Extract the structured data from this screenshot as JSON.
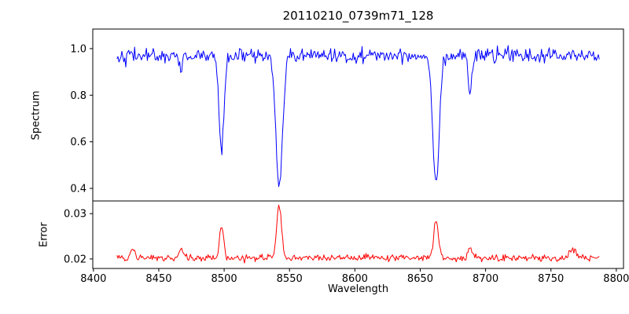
{
  "chart_data": {
    "type": "line",
    "title": "20110210_0739m71_128",
    "xlabel": "Wavelength",
    "xlim": [
      8399.5,
      8805.5
    ],
    "xticks": [
      8400,
      8450,
      8500,
      8550,
      8600,
      8650,
      8700,
      8750,
      8800
    ],
    "xtick_labels": [
      "8400",
      "8450",
      "8500",
      "8550",
      "8600",
      "8650",
      "8700",
      "8750",
      "8800"
    ],
    "x_start": 8418,
    "x_end": 8787,
    "x_step": 0.75,
    "panels": [
      {
        "name": "spectrum",
        "ylabel": "Spectrum",
        "color": "#0000ff",
        "ylim": [
          0.346,
          1.084
        ],
        "yticks": [
          0.4,
          0.6,
          0.8,
          1.0
        ],
        "ytick_labels": [
          "0.4",
          "0.6",
          "0.8",
          "1.0"
        ],
        "continuum": 0.97,
        "noise_sigma": 0.015,
        "absorption_lines": [
          {
            "center": 8467.0,
            "depth": 0.07,
            "sigma": 1.3
          },
          {
            "center": 8498.0,
            "depth": 0.41,
            "sigma": 1.9
          },
          {
            "center": 8542.1,
            "depth": 0.565,
            "sigma": 2.6
          },
          {
            "center": 8662.1,
            "depth": 0.55,
            "sigma": 2.4
          },
          {
            "center": 8688.0,
            "depth": 0.15,
            "sigma": 1.4
          }
        ]
      },
      {
        "name": "error",
        "ylabel": "Error",
        "color": "#ff0000",
        "ylim": [
          0.0179,
          0.0328
        ],
        "yticks": [
          0.02,
          0.03
        ],
        "ytick_labels": [
          "0.02",
          "0.03"
        ],
        "baseline": 0.0202,
        "noise_sigma": 0.00038,
        "peaks": [
          {
            "center": 8430.0,
            "amp": 0.0018,
            "sigma": 1.6
          },
          {
            "center": 8467.0,
            "amp": 0.0018,
            "sigma": 1.6
          },
          {
            "center": 8498.0,
            "amp": 0.0072,
            "sigma": 1.6
          },
          {
            "center": 8542.1,
            "amp": 0.0115,
            "sigma": 1.8
          },
          {
            "center": 8662.1,
            "amp": 0.0085,
            "sigma": 1.8
          },
          {
            "center": 8688.0,
            "amp": 0.0022,
            "sigma": 1.4
          },
          {
            "center": 8767.0,
            "amp": 0.0022,
            "sigma": 2.0
          }
        ]
      }
    ]
  }
}
